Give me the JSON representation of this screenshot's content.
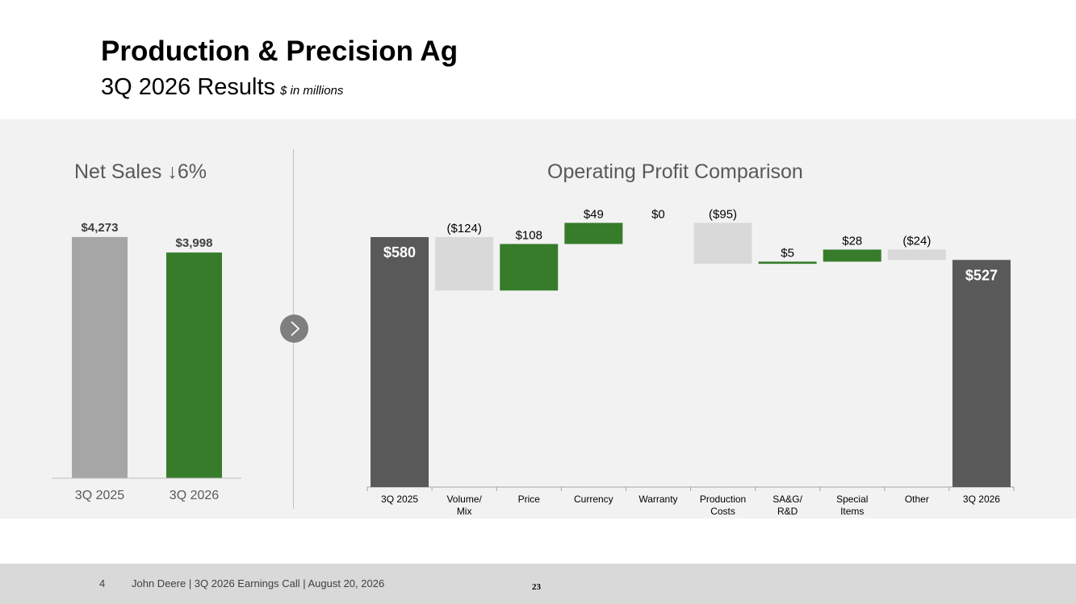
{
  "header": {
    "title": "Production & Precision Ag",
    "subtitle": "3Q 2026 Results",
    "units": "$ in millions"
  },
  "footer": {
    "page_number": "4",
    "text": "John Deere | 3Q 2026 Earnings Call | August 20, 2026",
    "slide_number": "23"
  },
  "colors": {
    "prior_bar": "#a6a6a6",
    "green": "#367c2b",
    "dark": "#595959",
    "negative": "#d9d9d9"
  },
  "chart_data": [
    {
      "type": "bar",
      "title": "Net Sales ↓6%",
      "categories": [
        "3Q 2025",
        "3Q 2026"
      ],
      "values": [
        4273,
        3998
      ],
      "labels": [
        "$4,273",
        "$3,998"
      ],
      "ylim": [
        0,
        4900
      ]
    },
    {
      "type": "waterfall",
      "title": "Operating Profit Comparison",
      "categories": [
        "3Q 2025",
        "Volume/ Mix",
        "Price",
        "Currency",
        "Warranty",
        "Production Costs",
        "SA&G/ R&D",
        "Special Items",
        "Other",
        "3Q 2026"
      ],
      "values": [
        580,
        -124,
        108,
        49,
        0,
        -95,
        5,
        28,
        -24,
        527
      ],
      "kinds": [
        "total",
        "delta",
        "delta",
        "delta",
        "delta",
        "delta",
        "delta",
        "delta",
        "delta",
        "total"
      ],
      "labels": [
        "$580",
        "($124)",
        "$108",
        "$49",
        "$0",
        "($95)",
        "$5",
        "$28",
        "($24)",
        "$527"
      ],
      "ylim": [
        0,
        640
      ]
    }
  ]
}
